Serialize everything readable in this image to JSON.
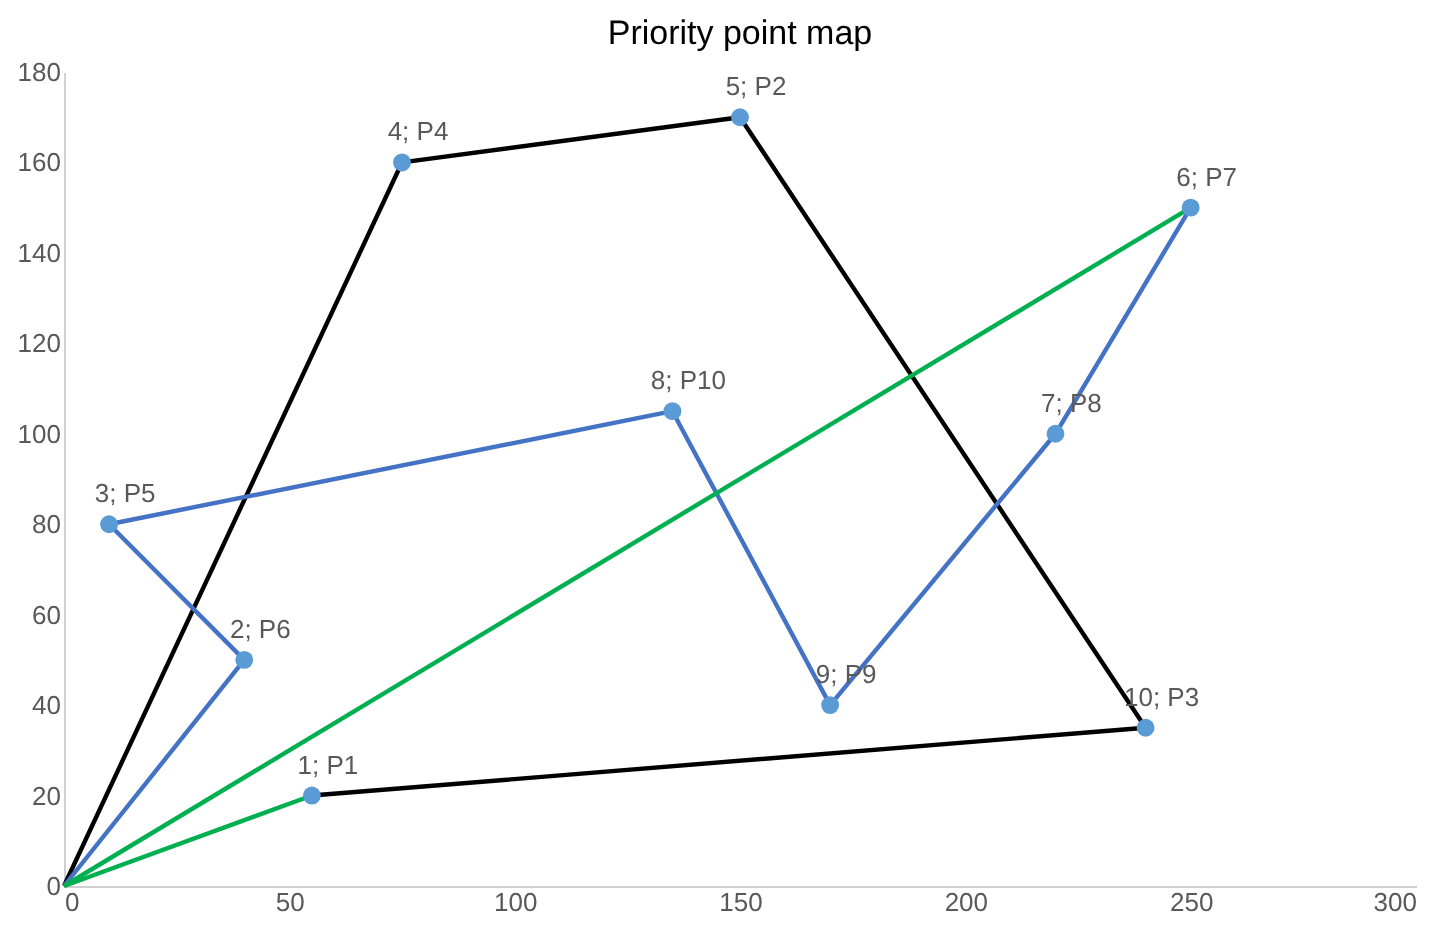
{
  "chart_data": {
    "type": "line",
    "title": "Priority point map",
    "series": [
      {
        "color": "#000000",
        "x": [
          0,
          75,
          150,
          240,
          55
        ],
        "values": [
          0,
          160,
          170,
          35,
          20
        ]
      },
      {
        "color": "#4472c4",
        "x": [
          0,
          40,
          10,
          135,
          170,
          220,
          250
        ],
        "values": [
          0,
          50,
          80,
          105,
          40,
          100,
          150
        ]
      },
      {
        "color": "#00b050",
        "x": [
          55,
          0
        ],
        "values": [
          20,
          0
        ]
      },
      {
        "color": "#00b050",
        "x": [
          250,
          0
        ],
        "values": [
          150,
          0
        ]
      },
      {
        "type": "scatter",
        "marker": "circle",
        "color": "#5b9bd5",
        "x": [
          55,
          40,
          10,
          75,
          150,
          250,
          220,
          135,
          170,
          240
        ],
        "values": [
          20,
          50,
          80,
          160,
          170,
          150,
          100,
          105,
          40,
          35
        ],
        "value_labels": [
          "1; P1",
          "2; P6",
          "3; P5",
          "4; P4",
          "5; P2",
          "6; P7",
          "7; P8",
          "8; P10",
          "9; P9",
          "10; P3"
        ]
      }
    ],
    "xlim": [
      0,
      300
    ],
    "xticks": [
      0,
      50,
      100,
      150,
      200,
      250,
      300
    ],
    "ylim": [
      0,
      180
    ],
    "yticks": [
      0,
      20,
      40,
      60,
      80,
      100,
      120,
      140,
      160,
      180
    ],
    "grid": false,
    "marker": "none",
    "line_style": "solid"
  }
}
